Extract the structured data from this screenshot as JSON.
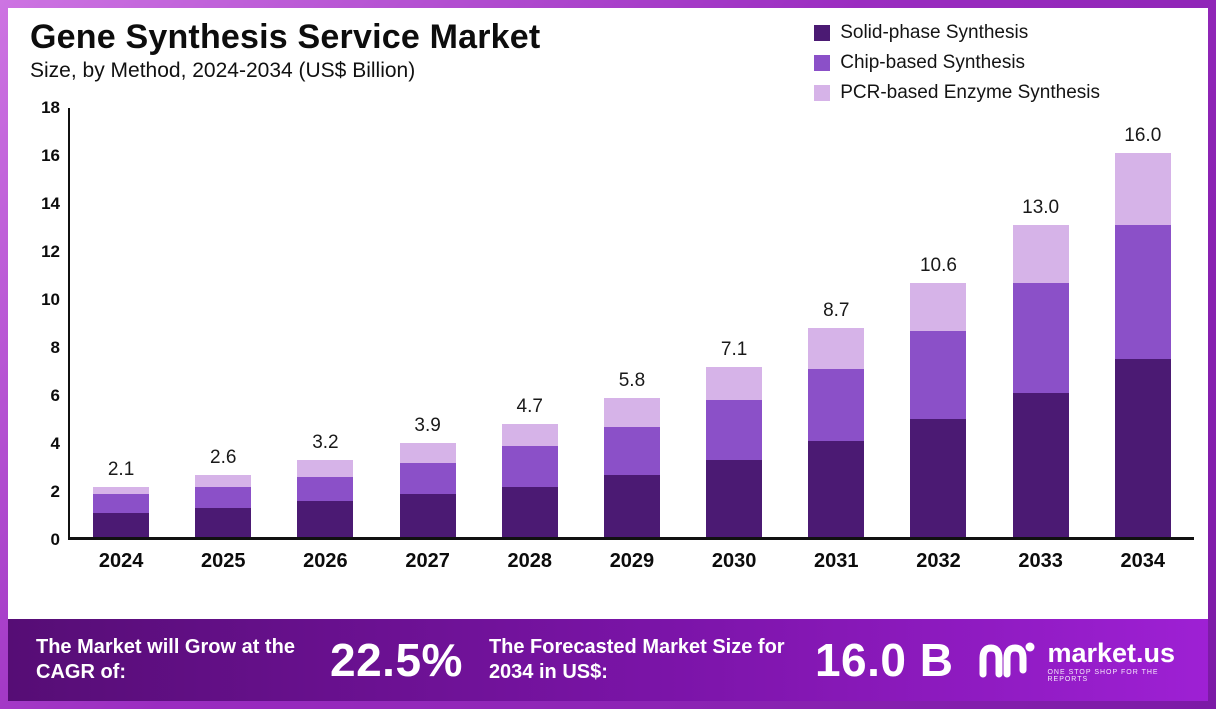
{
  "header": {
    "title": "Gene Synthesis Service Market",
    "subtitle": "Size, by Method, 2024-2034 (US$ Billion)"
  },
  "legend": [
    {
      "label": "Solid-phase Synthesis",
      "color": "#4b1a73"
    },
    {
      "label": "Chip-based Synthesis",
      "color": "#8b50c8"
    },
    {
      "label": "PCR-based Enzyme Synthesis",
      "color": "#d6b3e8"
    }
  ],
  "chart_data": {
    "type": "bar",
    "stacked": true,
    "title": "Gene Synthesis Service Market Size, by Method, 2024-2034 (US$ Billion)",
    "xlabel": "",
    "ylabel": "",
    "ylim": [
      0,
      18
    ],
    "yticks": [
      0,
      2,
      4,
      6,
      8,
      10,
      12,
      14,
      16,
      18
    ],
    "grid": false,
    "legend_position": "top-right",
    "categories": [
      "2024",
      "2025",
      "2026",
      "2027",
      "2028",
      "2029",
      "2030",
      "2031",
      "2032",
      "2033",
      "2034"
    ],
    "series": [
      {
        "name": "Solid-phase Synthesis",
        "color": "#4b1a73",
        "values": [
          1.0,
          1.2,
          1.5,
          1.8,
          2.1,
          2.6,
          3.2,
          4.0,
          4.9,
          6.0,
          7.4
        ]
      },
      {
        "name": "Chip-based Synthesis",
        "color": "#8b50c8",
        "values": [
          0.8,
          0.9,
          1.0,
          1.3,
          1.7,
          2.0,
          2.5,
          3.0,
          3.7,
          4.6,
          5.6
        ]
      },
      {
        "name": "PCR-based Enzyme Synthesis",
        "color": "#d6b3e8",
        "values": [
          0.3,
          0.5,
          0.7,
          0.8,
          0.9,
          1.2,
          1.4,
          1.7,
          2.0,
          2.4,
          3.0
        ]
      }
    ],
    "totals": [
      2.1,
      2.6,
      3.2,
      3.9,
      4.7,
      5.8,
      7.1,
      8.7,
      10.6,
      13.0,
      16.0
    ],
    "total_labels": [
      "2.1",
      "2.6",
      "3.2",
      "3.9",
      "4.7",
      "5.8",
      "7.1",
      "8.7",
      "10.6",
      "13.0",
      "16.0"
    ]
  },
  "footer": {
    "cagr_label": "The Market will Grow at the CAGR of:",
    "cagr_value": "22.5%",
    "forecast_label": "The Forecasted Market Size for 2034 in US$:",
    "forecast_value": "16.0 B",
    "brand": "market.us",
    "brand_tagline": "One Stop Shop for the Reports"
  }
}
